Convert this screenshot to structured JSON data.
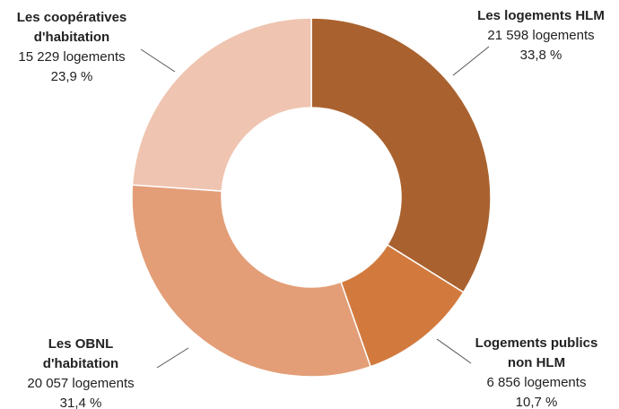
{
  "chart_data": {
    "type": "donut",
    "categories": [
      [
        "Les logements HLM"
      ],
      [
        "Logements publics",
        "non HLM"
      ],
      [
        "Les OBNL",
        "d'habitation"
      ],
      [
        "Les coopératives",
        "d'habitation"
      ]
    ],
    "values": [
      21598,
      6856,
      20057,
      15229
    ],
    "value_labels": [
      "21 598 logements",
      "6 856 logements",
      "20 057 logements",
      "15 229 logements"
    ],
    "percentages": [
      33.8,
      10.7,
      31.4,
      23.9
    ],
    "percentage_labels": [
      "33,8 %",
      "10,7 %",
      "31,4 %",
      "23,9 %"
    ],
    "colors": [
      "#a9622f",
      "#d27a3e",
      "#e39e78",
      "#efc4b0"
    ]
  }
}
